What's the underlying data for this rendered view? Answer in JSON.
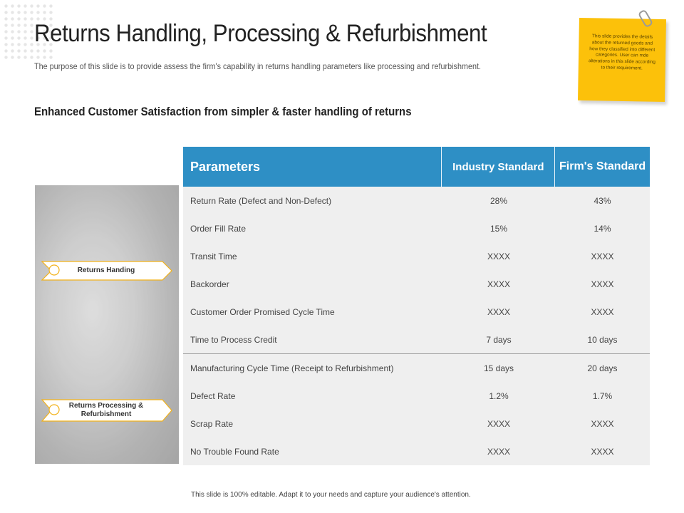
{
  "slide": {
    "title": "Returns Handling, Processing & Refurbishment",
    "subtitle": "The purpose of this slide is to provide assess the firm's capability in returns handling parameters like processing and refurbishment.",
    "heading": "Enhanced Customer Satisfaction from simpler & faster handling of returns"
  },
  "sticky_note": {
    "text": "This slide provides the details about the returned goods and how they classified into different categories. User can mde alterations in this slide according to their requirement.",
    "color": "#fcc10a"
  },
  "labels": {
    "returns_handling": "Returns Handing",
    "returns_processing": "Returns Processing & Refurbishment"
  },
  "table": {
    "headers": {
      "parameters": "Parameters",
      "industry": "Industry Standard",
      "firm": "Firm's Standard"
    },
    "header_color": "#2e8fc5",
    "rows": [
      {
        "parameter": "Return Rate (Defect and Non-Defect)",
        "industry": "28%",
        "firm": "43%"
      },
      {
        "parameter": "Order Fill Rate",
        "industry": "15%",
        "firm": "14%"
      },
      {
        "parameter": "Transit Time",
        "industry": "XXXX",
        "firm": "XXXX"
      },
      {
        "parameter": "Backorder",
        "industry": "XXXX",
        "firm": "XXXX"
      },
      {
        "parameter": "Customer Order Promised Cycle Time",
        "industry": "XXXX",
        "firm": "XXXX"
      },
      {
        "parameter": "Time to Process Credit",
        "industry": "7 days",
        "firm": "10 days"
      },
      {
        "parameter": "Manufacturing Cycle Time (Receipt to Refurbishment)",
        "industry": "15 days",
        "firm": "20 days"
      },
      {
        "parameter": "Defect Rate",
        "industry": "1.2%",
        "firm": "1.7%"
      },
      {
        "parameter": "Scrap Rate",
        "industry": "XXXX",
        "firm": "XXXX"
      },
      {
        "parameter": "No Trouble Found Rate",
        "industry": "XXXX",
        "firm": "XXXX"
      }
    ]
  },
  "footer": "This slide is 100% editable. Adapt it to your needs and capture your audience's attention."
}
